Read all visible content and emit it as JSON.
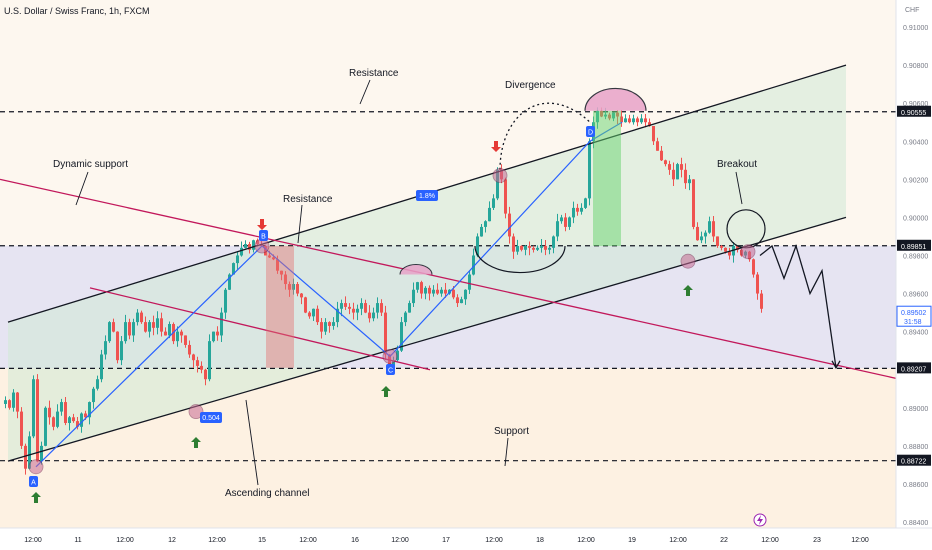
{
  "header": {
    "symbol_title": "U.S. Dollar / Swiss Franc, 1h, FXCM"
  },
  "price_axis": {
    "currency": "CHF",
    "tick_labels": [
      "0.91000",
      "0.90800",
      "0.90600",
      "0.90400",
      "0.90200",
      "0.90000",
      "0.89800",
      "0.89600",
      "0.89400",
      "0.89200",
      "0.89000",
      "0.88800",
      "0.88600",
      "0.88400"
    ],
    "highlight_labels": [
      {
        "value": 0.90555,
        "label": "0.90555",
        "style": "black"
      },
      {
        "value": 0.89851,
        "label": "0.89851",
        "style": "black"
      },
      {
        "value": 0.89502,
        "label": "0.89502",
        "sub": "31:58",
        "style": "blue"
      },
      {
        "value": 0.89207,
        "label": "0.89207",
        "style": "black"
      },
      {
        "value": 0.88722,
        "label": "0.88722",
        "style": "black"
      }
    ]
  },
  "time_axis": {
    "tick_labels": [
      "12:00",
      "11",
      "12:00",
      "12",
      "12:00",
      "15",
      "12:00",
      "16",
      "12:00",
      "17",
      "12:00",
      "18",
      "12:00",
      "19",
      "12:00",
      "22",
      "12:00",
      "23",
      "12:00"
    ]
  },
  "annotations": {
    "resistance_top": "Resistance",
    "divergence": "Divergence",
    "dynamic_support": "Dynamic support",
    "resistance_mid": "Resistance",
    "breakout": "Breakout",
    "support": "Support",
    "ascending_channel": "Ascending channel",
    "move_label_1": "1.8%",
    "move_label_2": "0.504",
    "point_a": "A",
    "point_b": "B",
    "point_c": "C",
    "point_d": "D"
  },
  "colors": {
    "bull": "#26a69a",
    "bear": "#ef5350",
    "channel_line": "#131722",
    "dynamic_line": "#c2185b",
    "zigzag": "#2962ff",
    "label_blue": "#2962ff",
    "arrow_up": "#2e7d32",
    "arrow_down": "#e53935"
  },
  "chart_data": {
    "type": "candlestick",
    "symbol": "U.S. Dollar / Swiss Franc, 1h, FXCM",
    "ylim": [
      0.884,
      0.911
    ],
    "horizontal_levels": [
      0.90555,
      0.89851,
      0.89207,
      0.88722
    ],
    "current_price": 0.89502,
    "price_path": [
      [
        0,
        0.8902
      ],
      [
        4,
        0.8904
      ],
      [
        8,
        0.89
      ],
      [
        12,
        0.8908
      ],
      [
        16,
        0.8898
      ],
      [
        20,
        0.888
      ],
      [
        24,
        0.8868
      ],
      [
        28,
        0.8885
      ],
      [
        32,
        0.8915
      ],
      [
        36,
        0.8872
      ],
      [
        40,
        0.888
      ],
      [
        44,
        0.89
      ],
      [
        48,
        0.8895
      ],
      [
        52,
        0.889
      ],
      [
        56,
        0.8898
      ],
      [
        60,
        0.8903
      ],
      [
        64,
        0.8892
      ],
      [
        68,
        0.8895
      ],
      [
        72,
        0.8893
      ],
      [
        76,
        0.889
      ],
      [
        80,
        0.8897
      ],
      [
        84,
        0.8895
      ],
      [
        88,
        0.8903
      ],
      [
        92,
        0.891
      ],
      [
        96,
        0.8915
      ],
      [
        100,
        0.8928
      ],
      [
        104,
        0.8935
      ],
      [
        108,
        0.8945
      ],
      [
        112,
        0.894
      ],
      [
        116,
        0.8925
      ],
      [
        120,
        0.8935
      ],
      [
        124,
        0.8945
      ],
      [
        128,
        0.8938
      ],
      [
        132,
        0.8945
      ],
      [
        136,
        0.895
      ],
      [
        140,
        0.8945
      ],
      [
        144,
        0.894
      ],
      [
        148,
        0.8945
      ],
      [
        152,
        0.8942
      ],
      [
        156,
        0.8947
      ],
      [
        160,
        0.894
      ],
      [
        164,
        0.8938
      ],
      [
        168,
        0.8944
      ],
      [
        172,
        0.8935
      ],
      [
        176,
        0.894
      ],
      [
        180,
        0.8938
      ],
      [
        184,
        0.8933
      ],
      [
        188,
        0.8928
      ],
      [
        192,
        0.8925
      ],
      [
        196,
        0.8922
      ],
      [
        200,
        0.892
      ],
      [
        204,
        0.8915
      ],
      [
        208,
        0.8935
      ],
      [
        212,
        0.894
      ],
      [
        216,
        0.8938
      ],
      [
        220,
        0.895
      ],
      [
        224,
        0.8962
      ],
      [
        228,
        0.897
      ],
      [
        232,
        0.8976
      ],
      [
        236,
        0.898
      ],
      [
        240,
        0.8984
      ],
      [
        244,
        0.8986
      ],
      [
        248,
        0.8983
      ],
      [
        252,
        0.8988
      ],
      [
        256,
        0.8986
      ],
      [
        260,
        0.8985
      ],
      [
        264,
        0.898
      ],
      [
        268,
        0.8979
      ],
      [
        272,
        0.8978
      ],
      [
        276,
        0.8972
      ],
      [
        280,
        0.897
      ],
      [
        284,
        0.8965
      ],
      [
        288,
        0.8962
      ],
      [
        292,
        0.8965
      ],
      [
        296,
        0.896
      ],
      [
        300,
        0.8958
      ],
      [
        304,
        0.895
      ],
      [
        308,
        0.8948
      ],
      [
        312,
        0.8952
      ],
      [
        316,
        0.8945
      ],
      [
        320,
        0.894
      ],
      [
        324,
        0.8945
      ],
      [
        328,
        0.8943
      ],
      [
        332,
        0.8945
      ],
      [
        336,
        0.8952
      ],
      [
        340,
        0.8955
      ],
      [
        344,
        0.8953
      ],
      [
        348,
        0.8952
      ],
      [
        352,
        0.895
      ],
      [
        356,
        0.8952
      ],
      [
        360,
        0.8955
      ],
      [
        364,
        0.895
      ],
      [
        368,
        0.8947
      ],
      [
        372,
        0.895
      ],
      [
        376,
        0.8955
      ],
      [
        380,
        0.895
      ],
      [
        384,
        0.8928
      ],
      [
        388,
        0.8922
      ],
      [
        392,
        0.8925
      ],
      [
        396,
        0.893
      ],
      [
        400,
        0.8945
      ],
      [
        404,
        0.895
      ],
      [
        408,
        0.8955
      ],
      [
        412,
        0.8962
      ],
      [
        416,
        0.8966
      ],
      [
        420,
        0.896
      ],
      [
        424,
        0.8963
      ],
      [
        428,
        0.896
      ],
      [
        432,
        0.8962
      ],
      [
        436,
        0.896
      ],
      [
        440,
        0.8962
      ],
      [
        444,
        0.896
      ],
      [
        448,
        0.8962
      ],
      [
        452,
        0.8958
      ],
      [
        456,
        0.8955
      ],
      [
        460,
        0.8957
      ],
      [
        464,
        0.8962
      ],
      [
        468,
        0.897
      ],
      [
        472,
        0.898
      ],
      [
        476,
        0.899
      ],
      [
        480,
        0.8995
      ],
      [
        484,
        0.8998
      ],
      [
        488,
        0.9005
      ],
      [
        492,
        0.901
      ],
      [
        496,
        0.9025
      ],
      [
        500,
        0.902
      ],
      [
        504,
        0.9002
      ],
      [
        508,
        0.899
      ],
      [
        512,
        0.8982
      ],
      [
        516,
        0.8985
      ],
      [
        520,
        0.8983
      ],
      [
        524,
        0.8985
      ],
      [
        528,
        0.8984
      ],
      [
        532,
        0.8983
      ],
      [
        536,
        0.8984
      ],
      [
        540,
        0.8985
      ],
      [
        544,
        0.8983
      ],
      [
        548,
        0.8984
      ],
      [
        552,
        0.899
      ],
      [
        556,
        0.8998
      ],
      [
        560,
        0.9
      ],
      [
        564,
        0.8995
      ],
      [
        568,
        0.9
      ],
      [
        572,
        0.9005
      ],
      [
        576,
        0.9003
      ],
      [
        580,
        0.9005
      ],
      [
        584,
        0.901
      ],
      [
        588,
        0.904
      ],
      [
        592,
        0.905
      ],
      [
        596,
        0.9056
      ],
      [
        600,
        0.9053
      ],
      [
        604,
        0.9054
      ],
      [
        608,
        0.9052
      ],
      [
        612,
        0.9055
      ],
      [
        616,
        0.9053
      ],
      [
        620,
        0.905
      ],
      [
        624,
        0.9052
      ],
      [
        628,
        0.905
      ],
      [
        632,
        0.9052
      ],
      [
        636,
        0.905
      ],
      [
        640,
        0.9052
      ],
      [
        644,
        0.905
      ],
      [
        648,
        0.9048
      ],
      [
        652,
        0.904
      ],
      [
        656,
        0.9035
      ],
      [
        660,
        0.903
      ],
      [
        664,
        0.9028
      ],
      [
        668,
        0.9025
      ],
      [
        672,
        0.902
      ],
      [
        676,
        0.9028
      ],
      [
        680,
        0.9025
      ],
      [
        684,
        0.9018
      ],
      [
        688,
        0.902
      ],
      [
        692,
        0.8995
      ],
      [
        696,
        0.8988
      ],
      [
        700,
        0.899
      ],
      [
        704,
        0.8992
      ],
      [
        708,
        0.8998
      ],
      [
        712,
        0.899
      ],
      [
        716,
        0.8985
      ],
      [
        720,
        0.8984
      ],
      [
        724,
        0.8982
      ],
      [
        728,
        0.898
      ],
      [
        732,
        0.8985
      ],
      [
        736,
        0.8983
      ],
      [
        740,
        0.898
      ],
      [
        744,
        0.8982
      ],
      [
        748,
        0.8978
      ],
      [
        752,
        0.897
      ],
      [
        756,
        0.896
      ],
      [
        760,
        0.8952
      ]
    ],
    "projection_path": [
      [
        760,
        0.898
      ],
      [
        772,
        0.8985
      ],
      [
        784,
        0.8968
      ],
      [
        796,
        0.8985
      ],
      [
        810,
        0.896
      ],
      [
        822,
        0.8972
      ],
      [
        836,
        0.8921
      ]
    ],
    "ascending_channel": {
      "upper": [
        [
          8,
          0.8945
        ],
        [
          846,
          0.908
        ]
      ],
      "lower": [
        [
          8,
          0.8872
        ],
        [
          846,
          0.9
        ]
      ]
    },
    "dynamic_support": [
      [
        0,
        0.902
      ],
      [
        900,
        0.8915
      ]
    ],
    "dynamic_support_2": [
      [
        90,
        0.8963
      ],
      [
        430,
        0.892
      ]
    ],
    "zigzag": [
      [
        36,
        0.8869
      ],
      [
        262,
        0.8985
      ],
      [
        390,
        0.8927
      ],
      [
        590,
        0.904
      ],
      [
        622,
        0.905
      ]
    ]
  }
}
